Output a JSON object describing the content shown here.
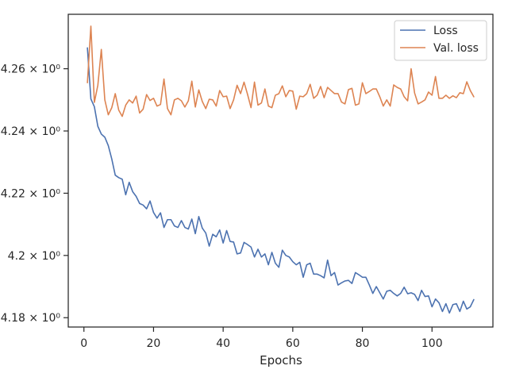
{
  "chart_data": {
    "type": "line",
    "title": "",
    "xlabel": "Epochs",
    "ylabel": "",
    "xlim": [
      -4.5,
      117.5
    ],
    "ylim": [
      4.177,
      4.2775
    ],
    "grid": false,
    "legend_position": "top-right",
    "x_ticks": [
      {
        "value": 0,
        "label": "0"
      },
      {
        "value": 20,
        "label": "20"
      },
      {
        "value": 40,
        "label": "40"
      },
      {
        "value": 60,
        "label": "60"
      },
      {
        "value": 80,
        "label": "80"
      },
      {
        "value": 100,
        "label": "100"
      }
    ],
    "y_ticks": [
      {
        "value": 4.18,
        "label": "4.18 × 10⁰"
      },
      {
        "value": 4.2,
        "label": "4.2 × 10⁰"
      },
      {
        "value": 4.22,
        "label": "4.22 × 10⁰"
      },
      {
        "value": 4.24,
        "label": "4.24 × 10⁰"
      },
      {
        "value": 4.26,
        "label": "4.26 × 10⁰"
      }
    ],
    "series": [
      {
        "name": "Loss",
        "color": "#4c72b0",
        "x_start": 1,
        "values": [
          4.2667,
          4.2503,
          4.2478,
          4.2415,
          4.239,
          4.238,
          4.2353,
          4.231,
          4.2258,
          4.225,
          4.2245,
          4.2195,
          4.2235,
          4.2205,
          4.219,
          4.2167,
          4.2162,
          4.215,
          4.2175,
          4.2138,
          4.212,
          4.2137,
          4.209,
          4.2115,
          4.2115,
          4.2095,
          4.209,
          4.2112,
          4.209,
          4.2085,
          4.2117,
          4.207,
          4.2125,
          4.2088,
          4.2072,
          4.203,
          4.2068,
          4.206,
          4.2082,
          4.204,
          4.208,
          4.2045,
          4.2043,
          4.2005,
          4.2008,
          4.2042,
          4.2035,
          4.2027,
          4.1995,
          4.202,
          4.1995,
          4.2005,
          4.197,
          4.201,
          4.1975,
          4.1962,
          4.2017,
          4.2,
          4.1995,
          4.198,
          4.197,
          4.1978,
          4.193,
          4.197,
          4.1975,
          4.194,
          4.194,
          4.1935,
          4.1928,
          4.1985,
          4.1935,
          4.1945,
          4.1905,
          4.1912,
          4.1918,
          4.192,
          4.191,
          4.1945,
          4.1938,
          4.193,
          4.193,
          4.1905,
          4.1878,
          4.19,
          4.188,
          4.186,
          4.1885,
          4.1888,
          4.1878,
          4.187,
          4.1878,
          4.1898,
          4.1877,
          4.188,
          4.1875,
          4.1855,
          4.1888,
          4.1868,
          4.187,
          4.1835,
          4.186,
          4.1848,
          4.182,
          4.1845,
          4.1815,
          4.1842,
          4.1845,
          4.182,
          4.1853,
          4.1828,
          4.1835,
          4.1858
        ]
      },
      {
        "name": "Val. loss",
        "color": "#dd8452",
        "x_start": 1,
        "values": [
          4.2555,
          4.2737,
          4.2492,
          4.2547,
          4.2662,
          4.25,
          4.2452,
          4.2475,
          4.252,
          4.2467,
          4.2447,
          4.2483,
          4.25,
          4.249,
          4.2512,
          4.2458,
          4.247,
          4.2517,
          4.2498,
          4.2505,
          4.248,
          4.2485,
          4.2567,
          4.2472,
          4.2452,
          4.25,
          4.2505,
          4.2497,
          4.2477,
          4.2497,
          4.256,
          4.2477,
          4.2532,
          4.2495,
          4.2472,
          4.2502,
          4.25,
          4.248,
          4.253,
          4.251,
          4.2512,
          4.2472,
          4.25,
          4.2547,
          4.252,
          4.2557,
          4.2518,
          4.2475,
          4.2557,
          4.2483,
          4.249,
          4.2535,
          4.248,
          4.2475,
          4.2515,
          4.252,
          4.2545,
          4.251,
          4.253,
          4.2528,
          4.247,
          4.2512,
          4.251,
          4.252,
          4.255,
          4.2505,
          4.2515,
          4.2543,
          4.2507,
          4.254,
          4.253,
          4.252,
          4.252,
          4.2493,
          4.2487,
          4.2533,
          4.2537,
          4.2483,
          4.2487,
          4.2555,
          4.252,
          4.2527,
          4.2535,
          4.2535,
          4.251,
          4.248,
          4.25,
          4.248,
          4.2548,
          4.254,
          4.2535,
          4.251,
          4.2497,
          4.26,
          4.2522,
          4.2487,
          4.2493,
          4.25,
          4.2525,
          4.2515,
          4.2575,
          4.2505,
          4.2505,
          4.2515,
          4.2505,
          4.2513,
          4.2507,
          4.2523,
          4.252,
          4.2558,
          4.253,
          4.251
        ]
      }
    ]
  }
}
